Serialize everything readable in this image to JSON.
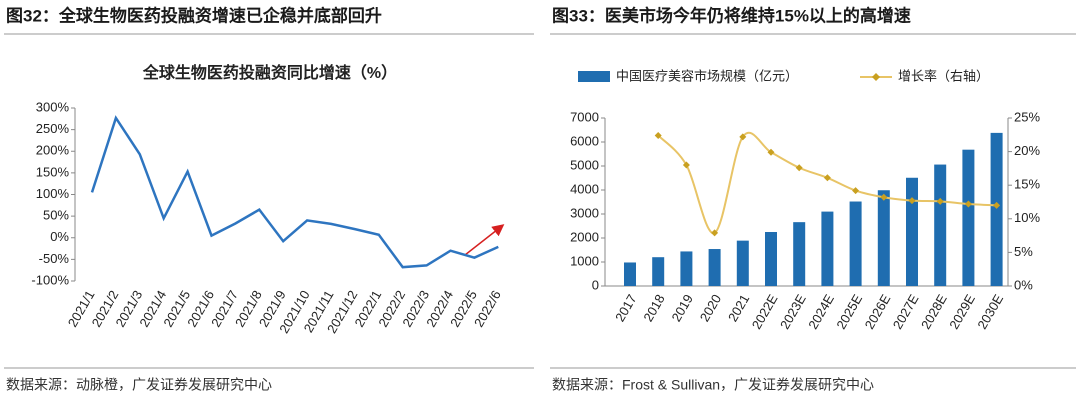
{
  "chart_data": [
    {
      "type": "line",
      "figure_title": "图32：全球生物医药投融资增速已企稳并底部回升",
      "title": "全球生物医药投融资同比增速（%）",
      "categories": [
        "2021/1",
        "2021/2",
        "2021/3",
        "2021/4",
        "2021/5",
        "2021/6",
        "2021/7",
        "2021/8",
        "2021/9",
        "2021/10",
        "2021/11",
        "2021/12",
        "2022/1",
        "2022/2",
        "2022/3",
        "2022/4",
        "2022/5",
        "2022/6"
      ],
      "values": [
        105,
        277,
        193,
        45,
        153,
        5,
        33,
        65,
        -8,
        40,
        32,
        20,
        7,
        -68,
        -64,
        -30,
        -46,
        -21
      ],
      "color": "#2e75c0",
      "ylim": [
        -100,
        300
      ],
      "yticks": [
        {
          "value": -100,
          "label": "-100%"
        },
        {
          "value": -50,
          "label": "-50%"
        },
        {
          "value": 0,
          "label": "0%"
        },
        {
          "value": 50,
          "label": "50%"
        },
        {
          "value": 100,
          "label": "100%"
        },
        {
          "value": 150,
          "label": "150%"
        },
        {
          "value": 200,
          "label": "200%"
        },
        {
          "value": 250,
          "label": "250%"
        },
        {
          "value": 300,
          "label": "300%"
        }
      ],
      "source": "数据来源：动脉橙，广发证券发展研究中心"
    },
    {
      "type": "combo",
      "figure_title": "图33：医美市场今年仍将维持15%以上的高增速",
      "categories": [
        "2017",
        "2018",
        "2019",
        "2020",
        "2021",
        "2022E",
        "2023E",
        "2024E",
        "2025E",
        "2026E",
        "2027E",
        "2028E",
        "2029E",
        "2030E"
      ],
      "series": [
        {
          "name": "中国医疗美容市场规模（亿元）",
          "kind": "bar",
          "color": "#1f6db0",
          "values": [
            980,
            1200,
            1440,
            1540,
            1890,
            2250,
            2660,
            3100,
            3520,
            3990,
            4510,
            5060,
            5680,
            6380
          ]
        },
        {
          "name": "增长率（右轴）",
          "kind": "line",
          "axis": "y2",
          "color": "#e8c466",
          "values": [
            null,
            22.4,
            18.0,
            7.9,
            22.2,
            19.9,
            17.6,
            16.1,
            14.2,
            13.2,
            12.7,
            12.6,
            12.2,
            12.0
          ]
        }
      ],
      "ylim": [
        0,
        7000
      ],
      "yticks": [
        0,
        1000,
        2000,
        3000,
        4000,
        5000,
        6000,
        7000
      ],
      "y2lim": [
        0,
        25
      ],
      "y2ticks": [
        {
          "value": 0,
          "label": "0%"
        },
        {
          "value": 5,
          "label": "5%"
        },
        {
          "value": 10,
          "label": "10%"
        },
        {
          "value": 15,
          "label": "15%"
        },
        {
          "value": 20,
          "label": "20%"
        },
        {
          "value": 25,
          "label": "25%"
        }
      ],
      "source": "数据来源：Frost & Sullivan，广发证券发展研究中心"
    }
  ]
}
